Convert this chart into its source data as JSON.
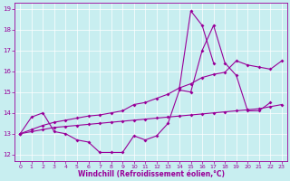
{
  "xlabel": "Windchill (Refroidissement éolien,°C)",
  "bg_color": "#c8eef0",
  "line_color": "#990099",
  "xlim": [
    -0.5,
    23.5
  ],
  "ylim": [
    11.7,
    19.3
  ],
  "xticks": [
    0,
    1,
    2,
    3,
    4,
    5,
    6,
    7,
    8,
    9,
    10,
    11,
    12,
    13,
    14,
    15,
    16,
    17,
    18,
    19,
    20,
    21,
    22,
    23
  ],
  "yticks": [
    12,
    13,
    14,
    15,
    16,
    17,
    18,
    19
  ],
  "line1_x": [
    0,
    1,
    2,
    3,
    4,
    5,
    6,
    7,
    8,
    9,
    10,
    11,
    12,
    13,
    14,
    15,
    16,
    17,
    18,
    19,
    20,
    21,
    22
  ],
  "line1_y": [
    13.0,
    13.8,
    14.0,
    13.1,
    13.0,
    12.7,
    12.6,
    12.1,
    12.1,
    12.1,
    12.9,
    12.7,
    12.9,
    13.5,
    15.1,
    15.0,
    17.0,
    18.2,
    16.4,
    15.8,
    14.1,
    14.1,
    14.5
  ],
  "line2_x": [
    0,
    1,
    2,
    3,
    4,
    5,
    6,
    7,
    8,
    9,
    10,
    11,
    12,
    13,
    14,
    15,
    16,
    17,
    18,
    19,
    20,
    21,
    22,
    23
  ],
  "line2_y": [
    13.0,
    13.1,
    13.2,
    13.3,
    13.35,
    13.4,
    13.45,
    13.5,
    13.55,
    13.6,
    13.65,
    13.7,
    13.75,
    13.8,
    13.85,
    13.9,
    13.95,
    14.0,
    14.05,
    14.1,
    14.15,
    14.2,
    14.3,
    14.4
  ],
  "line3_x": [
    0,
    1,
    2,
    3,
    4,
    5,
    6,
    7,
    8,
    9,
    10,
    11,
    12,
    13,
    14,
    15,
    16,
    17,
    18,
    19,
    20,
    21,
    22,
    23
  ],
  "line3_y": [
    13.0,
    13.2,
    13.4,
    13.55,
    13.65,
    13.75,
    13.85,
    13.9,
    14.0,
    14.1,
    14.4,
    14.5,
    14.7,
    14.9,
    15.2,
    15.4,
    15.7,
    15.85,
    15.95,
    16.5,
    16.3,
    16.2,
    16.1,
    16.5
  ],
  "line4_x": [
    14,
    15,
    16,
    17
  ],
  "line4_y": [
    15.2,
    18.9,
    18.2,
    16.4
  ]
}
